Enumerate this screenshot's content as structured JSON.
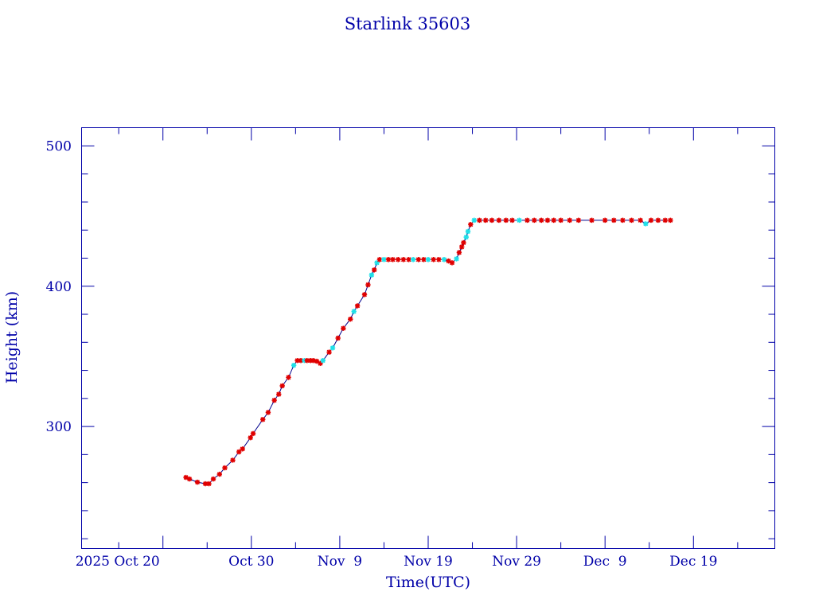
{
  "chart_data": {
    "type": "scatter",
    "title": "Starlink 35603",
    "xlabel": "Time(UTC)",
    "ylabel": "Height (km)",
    "x_units": "days since 2025 Oct 20",
    "xlim": [
      -9.2,
      69.2
    ],
    "ylim": [
      213,
      513
    ],
    "x_ticks": [
      {
        "value": 0,
        "label": "2025 Oct 20"
      },
      {
        "value": 10,
        "label": "Oct 30"
      },
      {
        "value": 20,
        "label": "Nov  9"
      },
      {
        "value": 30,
        "label": "Nov 19"
      },
      {
        "value": 40,
        "label": "Nov 29"
      },
      {
        "value": 50,
        "label": "Dec  9"
      },
      {
        "value": 60,
        "label": "Dec 19"
      }
    ],
    "y_ticks": [
      {
        "value": 300,
        "label": "300"
      },
      {
        "value": 400,
        "label": "400"
      },
      {
        "value": 500,
        "label": "500"
      }
    ],
    "colors": {
      "axis": "#0000a8",
      "line": "#00008b",
      "red": "#e00000",
      "cyan": "#20e0e8"
    },
    "points": [
      [
        2.6,
        263.7,
        "red"
      ],
      [
        3.0,
        262.6,
        "red"
      ],
      [
        3.9,
        260.3,
        "red"
      ],
      [
        4.8,
        259.2,
        "red"
      ],
      [
        5.2,
        259.2,
        "red"
      ],
      [
        5.7,
        262.6,
        "red"
      ],
      [
        6.4,
        266,
        "red"
      ],
      [
        7.0,
        270.5,
        "red"
      ],
      [
        7.9,
        276,
        "red"
      ],
      [
        8.6,
        281.9,
        "red"
      ],
      [
        9.0,
        284,
        "red"
      ],
      [
        9.9,
        292,
        "red"
      ],
      [
        10.2,
        295,
        "red"
      ],
      [
        11.3,
        305,
        "red"
      ],
      [
        11.9,
        310,
        "red"
      ],
      [
        12.6,
        318.7,
        "red"
      ],
      [
        13.1,
        323,
        "red"
      ],
      [
        13.5,
        329,
        "red"
      ],
      [
        14.2,
        335,
        "red"
      ],
      [
        14.8,
        343.6,
        "cyan"
      ],
      [
        15.2,
        347,
        "red"
      ],
      [
        15.6,
        347,
        "red"
      ],
      [
        16.0,
        347,
        "cyan"
      ],
      [
        16.3,
        347,
        "red"
      ],
      [
        16.7,
        347,
        "red"
      ],
      [
        17.0,
        347,
        "red"
      ],
      [
        17.4,
        346.5,
        "red"
      ],
      [
        17.8,
        345,
        "red"
      ],
      [
        18.1,
        347,
        "cyan"
      ],
      [
        18.8,
        353,
        "red"
      ],
      [
        19.2,
        356,
        "cyan"
      ],
      [
        19.8,
        363,
        "red"
      ],
      [
        20.4,
        370,
        "red"
      ],
      [
        21.2,
        376.5,
        "red"
      ],
      [
        21.6,
        382,
        "cyan"
      ],
      [
        22.0,
        386,
        "red"
      ],
      [
        22.8,
        394,
        "red"
      ],
      [
        23.2,
        401,
        "red"
      ],
      [
        23.6,
        408,
        "cyan"
      ],
      [
        23.9,
        411.6,
        "red"
      ],
      [
        24.2,
        416.7,
        "cyan"
      ],
      [
        24.5,
        419,
        "red"
      ],
      [
        25.0,
        419,
        "cyan"
      ],
      [
        25.5,
        419,
        "red"
      ],
      [
        26.0,
        419,
        "red"
      ],
      [
        26.6,
        419,
        "red"
      ],
      [
        27.2,
        419,
        "red"
      ],
      [
        27.8,
        419,
        "red"
      ],
      [
        28.3,
        419,
        "cyan"
      ],
      [
        28.9,
        419,
        "red"
      ],
      [
        29.5,
        419,
        "red"
      ],
      [
        30.0,
        419,
        "cyan"
      ],
      [
        30.6,
        419,
        "red"
      ],
      [
        31.2,
        419,
        "red"
      ],
      [
        31.8,
        419,
        "cyan"
      ],
      [
        32.3,
        418,
        "red"
      ],
      [
        32.7,
        416.7,
        "red"
      ],
      [
        33.2,
        419.5,
        "cyan"
      ],
      [
        33.5,
        424,
        "red"
      ],
      [
        33.8,
        428,
        "red"
      ],
      [
        34.0,
        431,
        "red"
      ],
      [
        34.3,
        435,
        "cyan"
      ],
      [
        34.5,
        439,
        "cyan"
      ],
      [
        34.8,
        444,
        "red"
      ],
      [
        35.2,
        447,
        "cyan"
      ],
      [
        35.8,
        447,
        "red"
      ],
      [
        36.5,
        447,
        "red"
      ],
      [
        37.2,
        447,
        "red"
      ],
      [
        38.0,
        447,
        "red"
      ],
      [
        38.8,
        447,
        "red"
      ],
      [
        39.5,
        447,
        "red"
      ],
      [
        40.3,
        447,
        "cyan"
      ],
      [
        41.2,
        447,
        "red"
      ],
      [
        42.0,
        447,
        "red"
      ],
      [
        42.8,
        447,
        "red"
      ],
      [
        43.5,
        447,
        "red"
      ],
      [
        44.2,
        447,
        "red"
      ],
      [
        45.0,
        447,
        "red"
      ],
      [
        46.0,
        447,
        "red"
      ],
      [
        47.0,
        447,
        "red"
      ],
      [
        48.5,
        447,
        "red"
      ],
      [
        50.0,
        447,
        "red"
      ],
      [
        51.0,
        447,
        "red"
      ],
      [
        52.0,
        447,
        "red"
      ],
      [
        53.0,
        447,
        "red"
      ],
      [
        54.0,
        447,
        "red"
      ],
      [
        54.6,
        444.5,
        "cyan"
      ],
      [
        55.2,
        447,
        "red"
      ],
      [
        56.0,
        447,
        "red"
      ],
      [
        56.8,
        447,
        "red"
      ],
      [
        57.4,
        447,
        "red"
      ]
    ]
  }
}
